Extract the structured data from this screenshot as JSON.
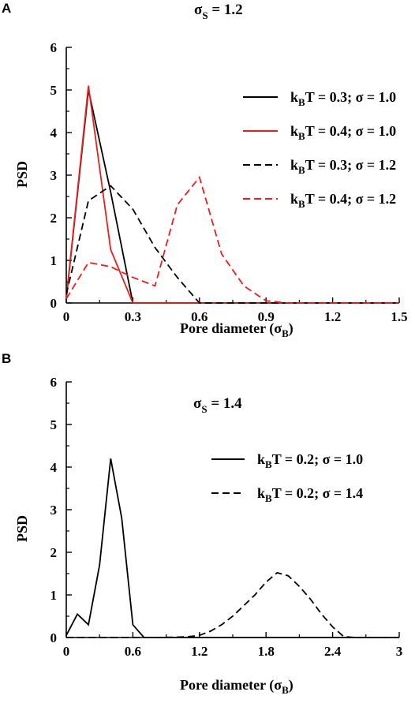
{
  "chart_data": [
    {
      "panel": "A",
      "type": "line",
      "title": "σS = 1.2",
      "title_parts": {
        "base": "σ",
        "sub": "S",
        "rest": " = 1.2"
      },
      "xlabel": "Pore diameter (σB)",
      "xlabel_parts": {
        "base": "Pore diameter (σ",
        "sub": "B",
        "rest": ")"
      },
      "ylabel": "PSD",
      "xlim": [
        0,
        1.5
      ],
      "ylim": [
        0,
        6
      ],
      "xticks": [
        0,
        0.3,
        0.6,
        0.9,
        1.2,
        1.5
      ],
      "xtick_labels": [
        "0",
        "0.3",
        "0.6",
        "0.9",
        "1.2",
        "1.5"
      ],
      "yticks": [
        0,
        1,
        2,
        3,
        4,
        5,
        6
      ],
      "ytick_labels": [
        "0",
        "1",
        "2",
        "3",
        "4",
        "5",
        "6"
      ],
      "grid": false,
      "legend_position": "top-right",
      "series": [
        {
          "name": "kBT = 0.3; σ = 1.0",
          "legend_parts": {
            "a": "k",
            "sub": "B",
            "b": "T = 0.3; σ = 1.0"
          },
          "color": "#000000",
          "dash": "solid",
          "x": [
            0,
            0.1,
            0.2,
            0.3,
            0.4,
            0.5,
            0.6,
            0.7,
            0.8,
            0.9,
            1.0,
            1.1,
            1.2,
            1.3,
            1.4,
            1.5
          ],
          "y": [
            0.1,
            5.0,
            2.6,
            0.0,
            0,
            0,
            0,
            0,
            0,
            0,
            0,
            0,
            0,
            0,
            0,
            0
          ]
        },
        {
          "name": "kBT = 0.4; σ = 1.0",
          "legend_parts": {
            "a": "k",
            "sub": "B",
            "b": "T = 0.4; σ = 1.0"
          },
          "color": "#ee1c1c",
          "dash": "solid",
          "x": [
            0,
            0.1,
            0.2,
            0.3,
            0.4,
            0.5,
            0.6,
            0.7,
            0.8,
            0.9,
            1.0,
            1.1,
            1.2,
            1.3,
            1.4,
            1.5
          ],
          "y": [
            0.1,
            5.1,
            1.25,
            0.0,
            0,
            0,
            0,
            0,
            0,
            0,
            0,
            0,
            0,
            0,
            0,
            0
          ]
        },
        {
          "name": "kBT = 0.3; σ = 1.2",
          "legend_parts": {
            "a": "k",
            "sub": "B",
            "b": "T = 0.3; σ = 1.2"
          },
          "color": "#000000",
          "dash": "dashed",
          "x": [
            0,
            0.1,
            0.2,
            0.3,
            0.4,
            0.5,
            0.6,
            0.7,
            0.8,
            0.9,
            1.0,
            1.1,
            1.2,
            1.3,
            1.4,
            1.5
          ],
          "y": [
            0.2,
            2.4,
            2.75,
            2.2,
            1.3,
            0.6,
            0.0,
            0,
            0,
            0,
            0,
            0,
            0,
            0,
            0,
            0
          ]
        },
        {
          "name": "kBT = 0.4; σ = 1.2",
          "legend_parts": {
            "a": "k",
            "sub": "B",
            "b": "T = 0.4; σ = 1.2"
          },
          "color": "#ee1c1c",
          "dash": "dashed",
          "x": [
            0,
            0.1,
            0.2,
            0.3,
            0.4,
            0.5,
            0.6,
            0.7,
            0.8,
            0.9,
            1.0,
            1.1,
            1.2,
            1.3,
            1.4,
            1.5
          ],
          "y": [
            0.1,
            0.95,
            0.85,
            0.6,
            0.4,
            2.3,
            2.95,
            1.15,
            0.4,
            0.05,
            0,
            0,
            0,
            0,
            0,
            0
          ]
        }
      ]
    },
    {
      "panel": "B",
      "type": "line",
      "title": "σS = 1.4",
      "title_parts": {
        "base": "σ",
        "sub": "S",
        "rest": " = 1.4"
      },
      "xlabel": "Pore diameter (σB)",
      "xlabel_parts": {
        "base": "Pore diameter (σ",
        "sub": "B",
        "rest": ")"
      },
      "ylabel": "PSD",
      "xlim": [
        0,
        3
      ],
      "ylim": [
        0,
        6
      ],
      "xticks": [
        0,
        0.6,
        1.2,
        1.8,
        2.4,
        3
      ],
      "xtick_labels": [
        "0",
        "0.6",
        "1.2",
        "1.8",
        "2.4",
        "3"
      ],
      "yticks": [
        0,
        1,
        2,
        3,
        4,
        5,
        6
      ],
      "ytick_labels": [
        "0",
        "1",
        "2",
        "3",
        "4",
        "5",
        "6"
      ],
      "grid": false,
      "legend_position": "top-right",
      "series": [
        {
          "name": "kBT = 0.2; σ = 1.0",
          "legend_parts": {
            "a": "k",
            "sub": "B",
            "b": "T = 0.2; σ = 1.0"
          },
          "color": "#000000",
          "dash": "solid",
          "x": [
            0,
            0.1,
            0.2,
            0.3,
            0.4,
            0.5,
            0.6,
            0.7,
            0.8,
            1.0,
            1.2,
            1.5,
            2.0,
            2.5,
            3.0
          ],
          "y": [
            0.05,
            0.55,
            0.3,
            1.7,
            4.2,
            2.8,
            0.3,
            0.0,
            0,
            0,
            0,
            0,
            0,
            0,
            0
          ]
        },
        {
          "name": "kBT = 0.2; σ = 1.4",
          "legend_parts": {
            "a": "k",
            "sub": "B",
            "b": "T = 0.2; σ = 1.4"
          },
          "color": "#000000",
          "dash": "dashed",
          "x": [
            0,
            0.5,
            0.8,
            1.0,
            1.1,
            1.2,
            1.3,
            1.4,
            1.5,
            1.6,
            1.7,
            1.8,
            1.9,
            2.0,
            2.1,
            2.2,
            2.3,
            2.4,
            2.5,
            2.6,
            3.0
          ],
          "y": [
            0,
            0,
            0,
            0.01,
            0.02,
            0.05,
            0.15,
            0.3,
            0.5,
            0.75,
            1.0,
            1.3,
            1.52,
            1.45,
            1.2,
            0.9,
            0.55,
            0.25,
            0.02,
            0,
            0
          ]
        }
      ]
    }
  ]
}
